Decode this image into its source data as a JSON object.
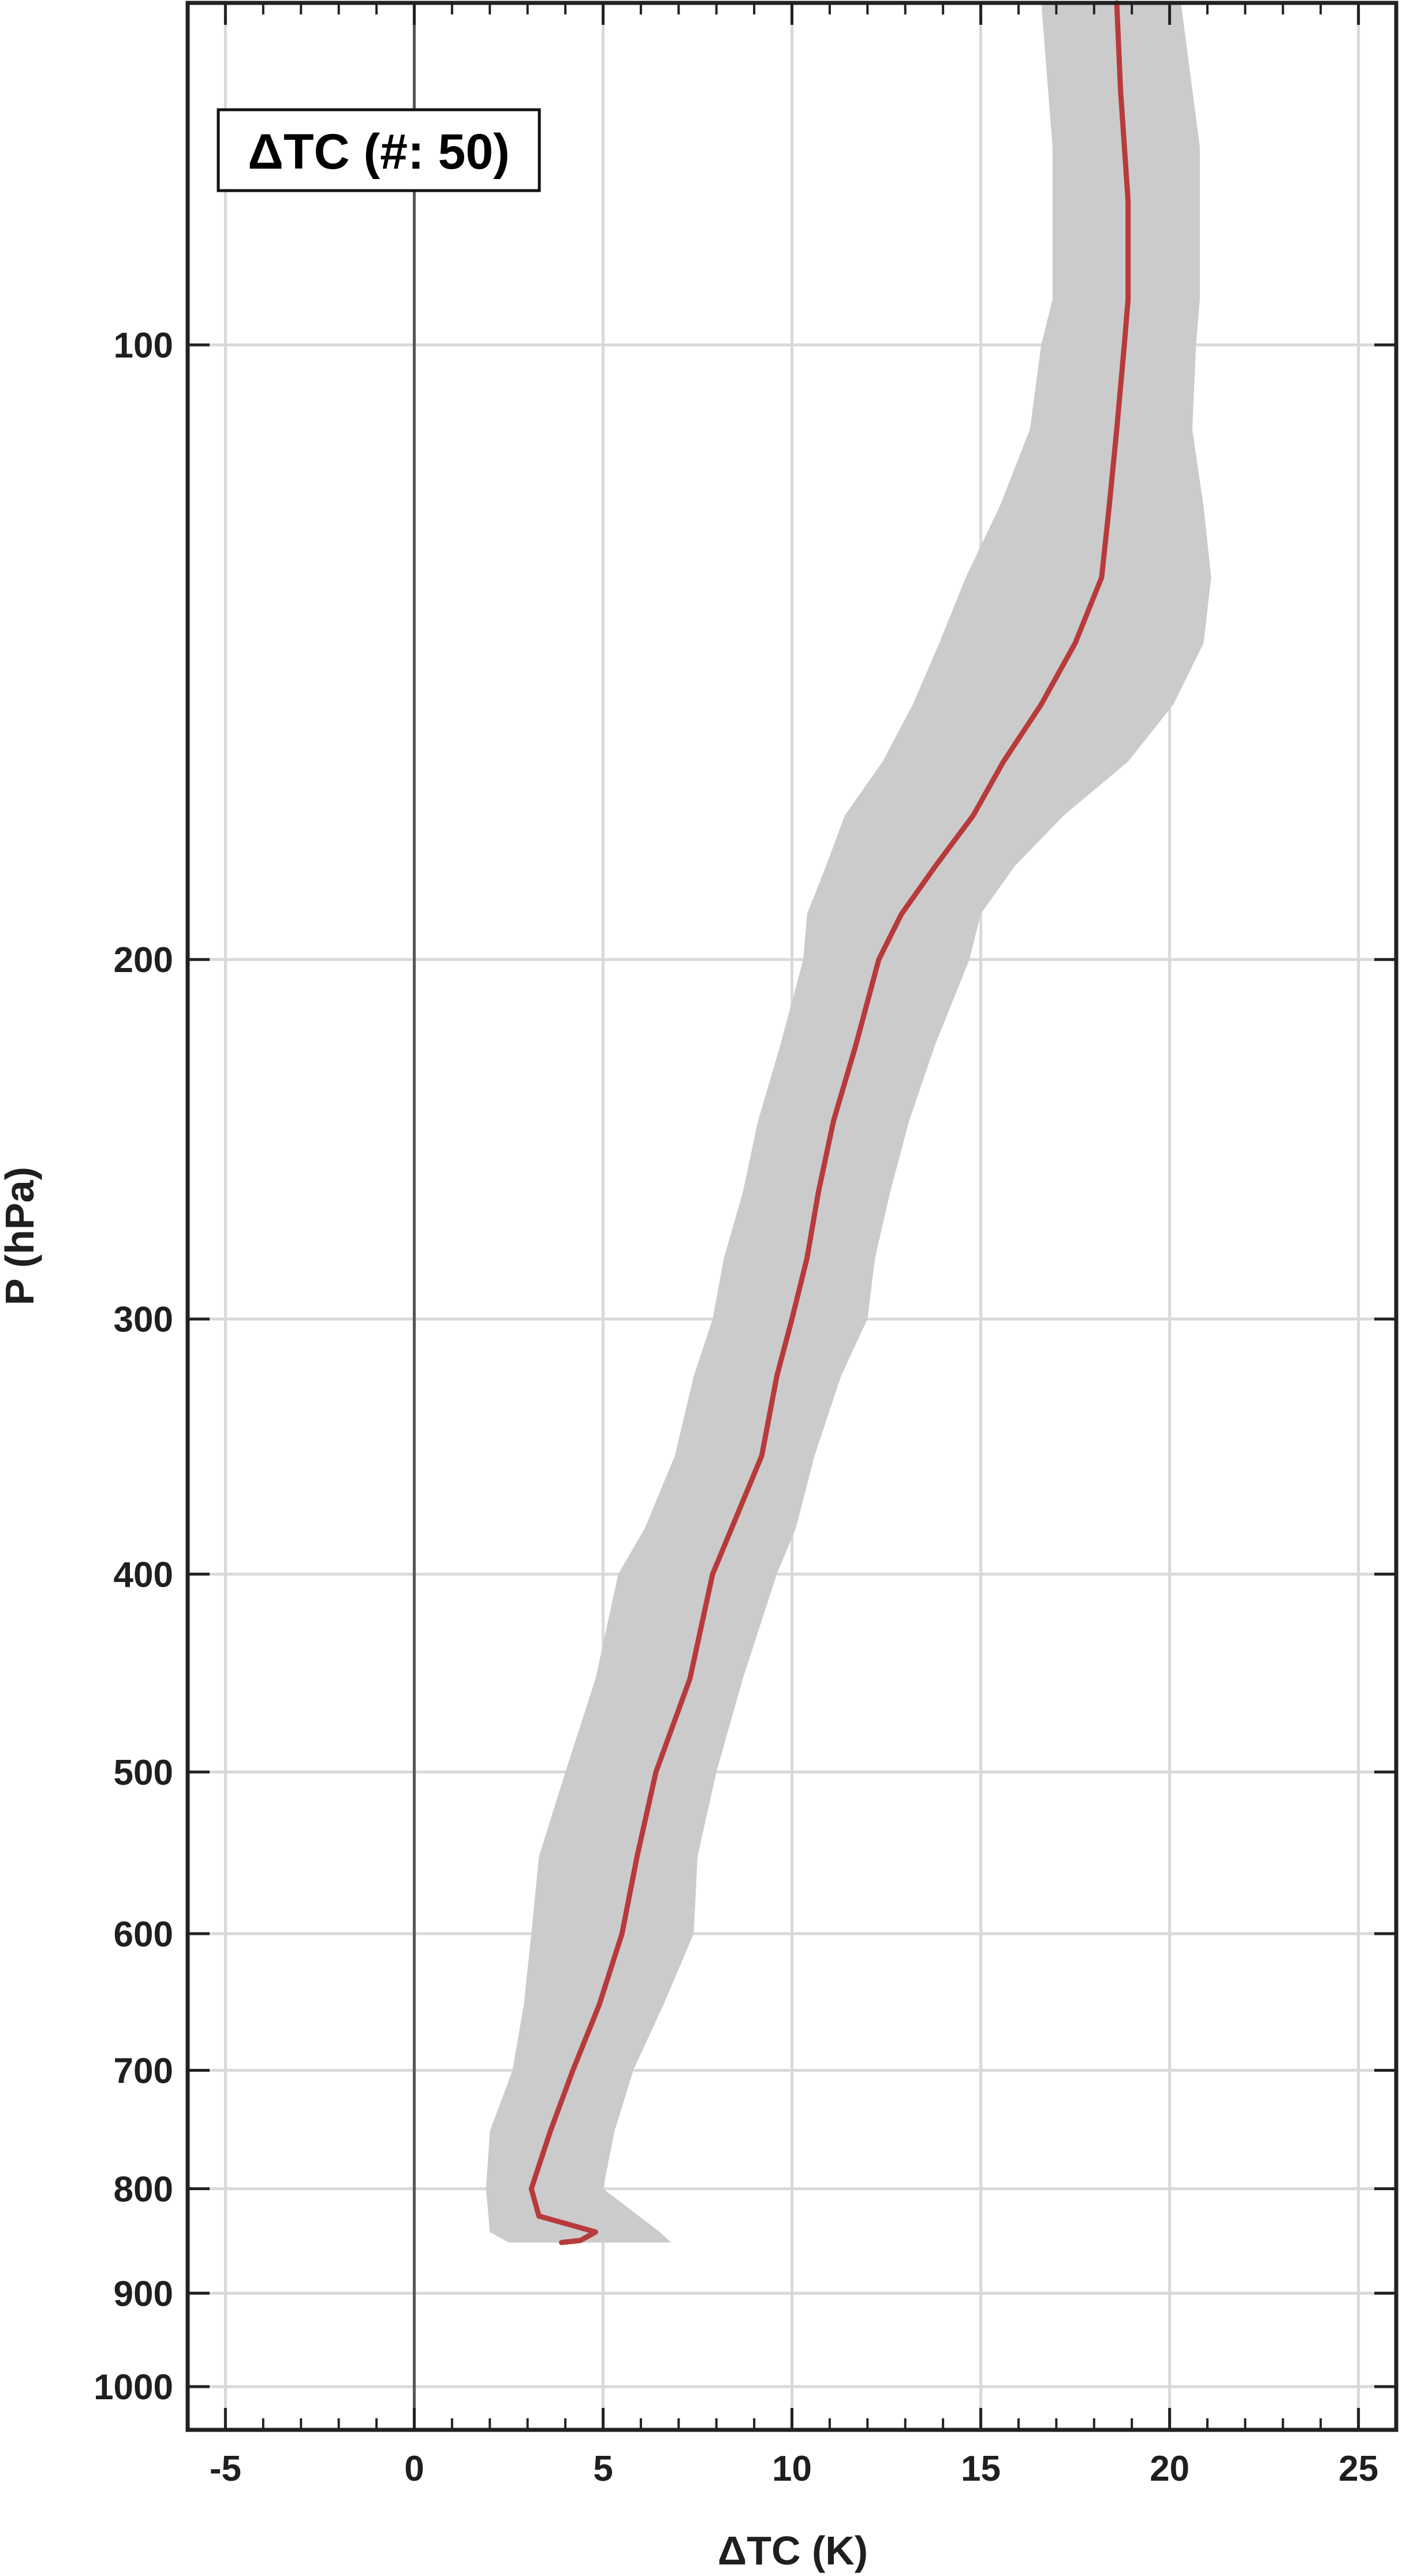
{
  "chart_data": {
    "type": "line",
    "title": "",
    "legend_label": "ΔTC (#: 50)",
    "legend_position": "top-left",
    "xlabel": "ΔTC (K)",
    "ylabel": "P (hPa)",
    "xlim": [
      -6,
      26
    ],
    "ylim": [
      1050,
      68
    ],
    "yscale": "log",
    "grid": true,
    "x_ticks": [
      -5,
      0,
      5,
      10,
      15,
      20,
      25
    ],
    "x_tick_labels": [
      "-5",
      "0",
      "5",
      "10",
      "15",
      "20",
      "25"
    ],
    "y_ticks": [
      100,
      200,
      300,
      400,
      500,
      600,
      700,
      800,
      900,
      1000
    ],
    "y_tick_labels": [
      "100",
      "200",
      "300",
      "400",
      "500",
      "600",
      "700",
      "800",
      "900",
      "1000"
    ],
    "zero_line_x": 0,
    "colors": {
      "mean": "#b83a3a",
      "band": "#cbcbcb",
      "grid": "#d9d9d9",
      "axis": "#222222"
    },
    "series": [
      {
        "role": "mean",
        "p": [
          68,
          75,
          85,
          95,
          100,
          110,
          120,
          130,
          140,
          150,
          160,
          170,
          180,
          190,
          200,
          220,
          240,
          260,
          280,
          300,
          320,
          350,
          380,
          400,
          450,
          500,
          550,
          600,
          650,
          700,
          750,
          800,
          825,
          840,
          848,
          850
        ],
        "value": [
          18.6,
          18.7,
          18.9,
          18.9,
          18.8,
          18.6,
          18.4,
          18.2,
          17.5,
          16.6,
          15.6,
          14.8,
          13.8,
          12.9,
          12.3,
          11.7,
          11.1,
          10.7,
          10.4,
          10.0,
          9.6,
          9.2,
          8.4,
          7.9,
          7.3,
          6.4,
          5.9,
          5.5,
          4.9,
          4.2,
          3.6,
          3.1,
          3.3,
          4.8,
          4.4,
          3.9
        ]
      },
      {
        "role": "band-low",
        "p": [
          68,
          80,
          95,
          100,
          110,
          120,
          130,
          140,
          150,
          160,
          170,
          180,
          190,
          200,
          220,
          240,
          260,
          280,
          300,
          320,
          350,
          380,
          400,
          450,
          500,
          550,
          600,
          650,
          700,
          750,
          800,
          840,
          850
        ],
        "value": [
          16.6,
          16.9,
          16.9,
          16.6,
          16.3,
          15.5,
          14.6,
          13.9,
          13.2,
          12.4,
          11.4,
          10.9,
          10.4,
          10.3,
          9.7,
          9.1,
          8.7,
          8.2,
          7.9,
          7.4,
          6.9,
          6.1,
          5.4,
          4.8,
          4.0,
          3.3,
          3.1,
          2.9,
          2.6,
          2.0,
          1.9,
          2.0,
          2.5
        ]
      },
      {
        "role": "band-high",
        "p": [
          68,
          80,
          95,
          100,
          110,
          120,
          130,
          140,
          150,
          160,
          170,
          180,
          190,
          200,
          220,
          240,
          260,
          280,
          300,
          320,
          350,
          380,
          400,
          450,
          500,
          550,
          600,
          650,
          700,
          750,
          800,
          840,
          850
        ],
        "value": [
          20.3,
          20.8,
          20.8,
          20.7,
          20.6,
          20.9,
          21.1,
          20.9,
          20.1,
          18.9,
          17.2,
          15.9,
          15.0,
          14.7,
          13.8,
          13.1,
          12.6,
          12.2,
          12.0,
          11.3,
          10.6,
          10.1,
          9.6,
          8.7,
          8.0,
          7.5,
          7.4,
          6.6,
          5.8,
          5.3,
          5.0,
          6.5,
          6.8
        ]
      }
    ]
  }
}
